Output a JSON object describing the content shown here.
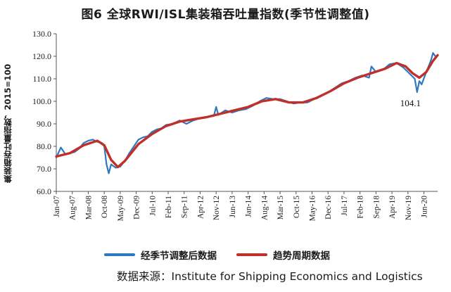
{
  "chart_data": {
    "type": "line",
    "title": "图6  全球RWI/ISL集装箱吞吐量指数(季节性调整值)",
    "ylabel": "集装箱吞吐量指数，2015=100",
    "ylim": [
      60,
      130
    ],
    "yticks": [
      "60.0",
      "70.0",
      "80.0",
      "90.0",
      "100.0",
      "110.0",
      "120.0",
      "130.0"
    ],
    "xtick_labels": [
      "Jan-07",
      "Aug-07",
      "Mar-08",
      "Oct-08",
      "May-09",
      "Dec-09",
      "Jul-10",
      "Feb-11",
      "Sep-11",
      "Apr-12",
      "Nov-12",
      "Jun-13",
      "Jan-14",
      "Aug-14",
      "Mar-15",
      "Oct-15",
      "May-16",
      "Dec-16",
      "Jul-17",
      "Feb-18",
      "Sep-18",
      "Apr-19",
      "Nov-19",
      "Jun-20"
    ],
    "grid": false,
    "legend_placement": "bottom",
    "annotations": [
      {
        "text": "104.1",
        "x": "Mar-20",
        "y": 104.1
      }
    ],
    "series": [
      {
        "name": "经季节调整后数据",
        "color": "#2e78c2",
        "points": [
          [
            "Jan-07",
            75.0
          ],
          [
            "Mar-07",
            79.5
          ],
          [
            "May-07",
            76.5
          ],
          [
            "Jul-07",
            77.0
          ],
          [
            "Sep-07",
            77.5
          ],
          [
            "Nov-07",
            79.0
          ],
          [
            "Jan-08",
            81.5
          ],
          [
            "Mar-08",
            82.5
          ],
          [
            "May-08",
            83.0
          ],
          [
            "Jul-08",
            82.0
          ],
          [
            "Sep-08",
            81.5
          ],
          [
            "Oct-08",
            80.0
          ],
          [
            "Nov-08",
            72.0
          ],
          [
            "Dec-08",
            68.0
          ],
          [
            "Jan-09",
            72.0
          ],
          [
            "Mar-09",
            70.5
          ],
          [
            "May-09",
            71.0
          ],
          [
            "Jul-09",
            73.5
          ],
          [
            "Sep-09",
            77.0
          ],
          [
            "Nov-09",
            80.0
          ],
          [
            "Jan-10",
            83.0
          ],
          [
            "Mar-10",
            84.0
          ],
          [
            "May-10",
            84.5
          ],
          [
            "Jul-10",
            86.5
          ],
          [
            "Sep-10",
            87.5
          ],
          [
            "Nov-10",
            88.0
          ],
          [
            "Jan-11",
            89.5
          ],
          [
            "Apr-11",
            90.0
          ],
          [
            "Jul-11",
            91.5
          ],
          [
            "Oct-11",
            90.0
          ],
          [
            "Jan-12",
            91.5
          ],
          [
            "Apr-12",
            92.5
          ],
          [
            "Jul-12",
            93.0
          ],
          [
            "Oct-12",
            93.5
          ],
          [
            "Nov-12",
            97.5
          ],
          [
            "Dec-12",
            94.0
          ],
          [
            "Mar-13",
            96.0
          ],
          [
            "Jun-13",
            95.0
          ],
          [
            "Sep-13",
            96.0
          ],
          [
            "Dec-13",
            96.5
          ],
          [
            "Mar-14",
            98.0
          ],
          [
            "Jun-14",
            100.0
          ],
          [
            "Sep-14",
            101.5
          ],
          [
            "Dec-14",
            101.0
          ],
          [
            "Mar-15",
            101.0
          ],
          [
            "Jun-15",
            100.0
          ],
          [
            "Sep-15",
            99.0
          ],
          [
            "Dec-15",
            99.5
          ],
          [
            "Mar-16",
            99.5
          ],
          [
            "Jun-16",
            101.0
          ],
          [
            "Sep-16",
            102.5
          ],
          [
            "Dec-16",
            104.0
          ],
          [
            "Mar-17",
            106.0
          ],
          [
            "Jun-17",
            108.0
          ],
          [
            "Sep-17",
            109.0
          ],
          [
            "Dec-17",
            110.5
          ],
          [
            "Mar-18",
            111.5
          ],
          [
            "Jun-18",
            110.5
          ],
          [
            "Jul-18",
            115.5
          ],
          [
            "Sep-18",
            113.0
          ],
          [
            "Dec-18",
            114.0
          ],
          [
            "Mar-19",
            116.5
          ],
          [
            "Jun-19",
            117.0
          ],
          [
            "Sep-19",
            115.0
          ],
          [
            "Dec-19",
            112.0
          ],
          [
            "Feb-20",
            110.0
          ],
          [
            "Mar-20",
            104.1
          ],
          [
            "Apr-20",
            109.0
          ],
          [
            "May-20",
            107.5
          ],
          [
            "Jul-20",
            113.0
          ],
          [
            "Sep-20",
            118.0
          ],
          [
            "Oct-20",
            121.5
          ],
          [
            "Nov-20",
            120.0
          ]
        ]
      },
      {
        "name": "趋势周期数据",
        "color": "#c0302a",
        "points": [
          [
            "Jan-07",
            75.5
          ],
          [
            "Jul-07",
            77.0
          ],
          [
            "Jan-08",
            80.5
          ],
          [
            "Jul-08",
            82.5
          ],
          [
            "Oct-08",
            80.5
          ],
          [
            "Jan-09",
            74.0
          ],
          [
            "Apr-09",
            70.8
          ],
          [
            "Jul-09",
            73.5
          ],
          [
            "Jan-10",
            81.0
          ],
          [
            "Jul-10",
            85.5
          ],
          [
            "Jan-11",
            89.0
          ],
          [
            "Jul-11",
            91.0
          ],
          [
            "Jan-12",
            92.0
          ],
          [
            "Jul-12",
            93.0
          ],
          [
            "Jan-13",
            94.5
          ],
          [
            "Jul-13",
            96.0
          ],
          [
            "Jan-14",
            97.5
          ],
          [
            "Jul-14",
            100.0
          ],
          [
            "Jan-15",
            101.0
          ],
          [
            "Jul-15",
            99.5
          ],
          [
            "Jan-16",
            99.5
          ],
          [
            "Jul-16",
            101.5
          ],
          [
            "Jan-17",
            104.5
          ],
          [
            "Jul-17",
            108.0
          ],
          [
            "Jan-18",
            110.5
          ],
          [
            "Jul-18",
            112.5
          ],
          [
            "Jan-19",
            114.5
          ],
          [
            "Jun-19",
            117.0
          ],
          [
            "Oct-19",
            115.5
          ],
          [
            "Jan-20",
            112.5
          ],
          [
            "Apr-20",
            110.5
          ],
          [
            "Jul-20",
            113.0
          ],
          [
            "Oct-20",
            118.0
          ],
          [
            "Dec-20",
            120.5
          ]
        ]
      }
    ],
    "source_text": "数据来源：Institute for Shipping Economics and Logistics"
  }
}
